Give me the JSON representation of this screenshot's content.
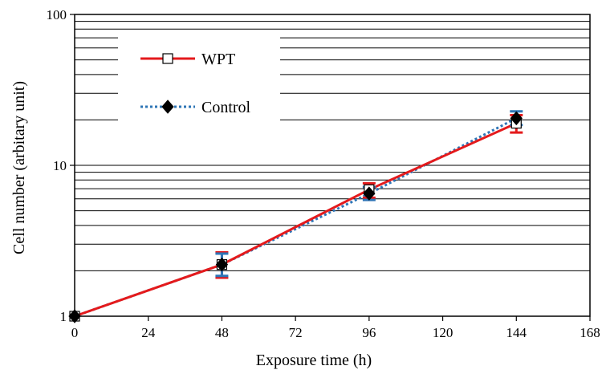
{
  "chart_data": {
    "type": "line",
    "title": "",
    "xlabel": "Exposure time (h)",
    "ylabel": "Cell number (arbitary unit)",
    "x_scale": "linear",
    "y_scale": "log",
    "xlim": [
      0,
      168
    ],
    "ylim": [
      1,
      100
    ],
    "x_ticks": [
      0,
      24,
      48,
      72,
      96,
      120,
      144,
      168
    ],
    "y_ticks": [
      1,
      10,
      100
    ],
    "grid": "horizontal (major and minor log lines)",
    "legend_position": "top-left",
    "x": [
      0,
      48,
      96,
      144
    ],
    "series": [
      {
        "name": "WPT",
        "color": "#e41a1c",
        "line_style": "solid",
        "marker": "open-square",
        "values": [
          1.0,
          2.2,
          6.9,
          19.0
        ],
        "error_low": [
          1.0,
          1.8,
          6.1,
          16.5
        ],
        "error_high": [
          1.0,
          2.65,
          7.6,
          21.5
        ]
      },
      {
        "name": "Control",
        "color": "#2e75b6",
        "line_style": "dotted",
        "marker": "filled-diamond",
        "values": [
          1.0,
          2.2,
          6.5,
          20.5
        ],
        "error_low": [
          1.0,
          1.85,
          5.9,
          18.5
        ],
        "error_high": [
          1.0,
          2.6,
          7.2,
          22.8
        ]
      }
    ]
  }
}
